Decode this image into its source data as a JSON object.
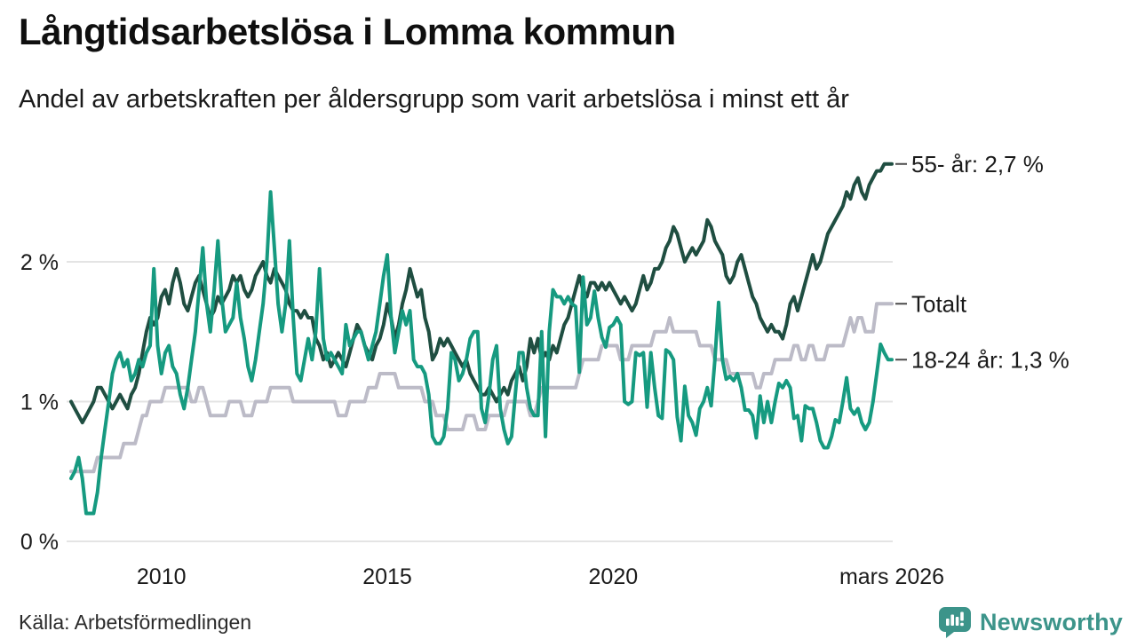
{
  "header": {
    "title": "Långtidsarbetslösa i Lomma kommun",
    "subtitle": "Andel av arbetskraften per åldersgrupp som varit arbetslösa i minst ett år"
  },
  "footer": {
    "source": "Källa: Arbetsförmedlingen",
    "brand": "Newsworthy"
  },
  "colors": {
    "series_55": "#1f4e41",
    "series_total": "#bcbbc7",
    "series_1824": "#169a80",
    "gridline": "#e4e4e4",
    "axis_text": "#1a1a1a",
    "end_label_text": "#1a1a1a",
    "end_label_dash": "#4a4a4a",
    "brand_teal": "#3c948a"
  },
  "chart_data": {
    "type": "line",
    "title": "Långtidsarbetslösa i Lomma kommun",
    "subtitle": "Andel av arbetskraften per åldersgrupp som varit arbetslösa i minst ett år",
    "x_start": "2008-01",
    "x_end": "2026-03",
    "x_unit": "month",
    "ylim": [
      0,
      2.9
    ],
    "grid": true,
    "y_ticks": [
      {
        "label": "0 %",
        "value": 0
      },
      {
        "label": "1 %",
        "value": 1
      },
      {
        "label": "2 %",
        "value": 2
      }
    ],
    "x_ticks": [
      {
        "label": "2010",
        "month": 24
      },
      {
        "label": "2015",
        "month": 84
      },
      {
        "label": "2020",
        "month": 144
      },
      {
        "label": "mars 2026",
        "month": 218
      }
    ],
    "series": [
      {
        "name": "Totalt",
        "end_label": "Totalt",
        "color": "#bcbbc7",
        "values": [
          0.5,
          0.5,
          0.5,
          0.5,
          0.5,
          0.5,
          0.5,
          0.6,
          0.6,
          0.6,
          0.6,
          0.6,
          0.6,
          0.6,
          0.7,
          0.7,
          0.7,
          0.7,
          0.8,
          0.9,
          0.9,
          1.0,
          1.0,
          1.0,
          1.0,
          1.1,
          1.1,
          1.1,
          1.1,
          1.1,
          1.1,
          1.1,
          1.0,
          1.0,
          1.1,
          1.1,
          1.0,
          0.9,
          0.9,
          0.9,
          0.9,
          0.9,
          1.0,
          1.0,
          1.0,
          1.0,
          0.9,
          0.9,
          0.9,
          1.0,
          1.0,
          1.0,
          1.0,
          1.1,
          1.1,
          1.1,
          1.1,
          1.1,
          1.1,
          1.0,
          1.0,
          1.0,
          1.0,
          1.0,
          1.0,
          1.0,
          1.0,
          1.0,
          1.0,
          1.0,
          1.0,
          0.9,
          0.9,
          0.9,
          1.0,
          1.0,
          1.0,
          1.0,
          1.0,
          1.1,
          1.1,
          1.1,
          1.2,
          1.2,
          1.2,
          1.2,
          1.2,
          1.1,
          1.1,
          1.1,
          1.1,
          1.1,
          1.1,
          1.1,
          1.0,
          1.0,
          1.0,
          0.9,
          0.9,
          0.9,
          0.8,
          0.8,
          0.8,
          0.8,
          0.8,
          0.9,
          0.9,
          0.9,
          0.8,
          0.8,
          0.8,
          0.9,
          0.9,
          0.9,
          0.9,
          0.9,
          1.0,
          1.0,
          1.0,
          1.0,
          1.0,
          1.0,
          0.9,
          0.9,
          1.0,
          1.1,
          1.1,
          1.1,
          1.1,
          1.1,
          1.1,
          1.1,
          1.1,
          1.1,
          1.1,
          1.2,
          1.3,
          1.3,
          1.3,
          1.3,
          1.3,
          1.4,
          1.4,
          1.4,
          1.4,
          1.4,
          1.3,
          1.3,
          1.3,
          1.4,
          1.4,
          1.4,
          1.4,
          1.4,
          1.4,
          1.5,
          1.5,
          1.5,
          1.5,
          1.6,
          1.5,
          1.5,
          1.5,
          1.5,
          1.5,
          1.5,
          1.5,
          1.4,
          1.4,
          1.4,
          1.4,
          1.3,
          1.3,
          1.3,
          1.3,
          1.2,
          1.2,
          1.2,
          1.2,
          1.2,
          1.2,
          1.2,
          1.1,
          1.1,
          1.2,
          1.2,
          1.2,
          1.3,
          1.3,
          1.3,
          1.3,
          1.3,
          1.4,
          1.4,
          1.3,
          1.3,
          1.4,
          1.4,
          1.3,
          1.3,
          1.3,
          1.4,
          1.4,
          1.4,
          1.4,
          1.4,
          1.5,
          1.6,
          1.5,
          1.6,
          1.6,
          1.5,
          1.5,
          1.5,
          1.7,
          1.7,
          1.7,
          1.7,
          1.7
        ]
      },
      {
        "name": "55- år",
        "end_label": "55- år: 2,7 %",
        "color": "#1f4e41",
        "values": [
          1.0,
          0.95,
          0.9,
          0.85,
          0.9,
          0.95,
          1.0,
          1.1,
          1.1,
          1.05,
          1.0,
          0.95,
          1.0,
          1.05,
          1.0,
          0.95,
          1.05,
          1.1,
          1.2,
          1.35,
          1.5,
          1.6,
          1.55,
          1.6,
          1.75,
          1.8,
          1.7,
          1.85,
          1.95,
          1.85,
          1.7,
          1.65,
          1.75,
          1.85,
          1.9,
          1.8,
          1.7,
          1.6,
          1.65,
          1.75,
          1.7,
          1.75,
          1.8,
          1.9,
          1.85,
          1.9,
          1.8,
          1.75,
          1.8,
          1.9,
          1.95,
          2.0,
          1.9,
          1.85,
          1.95,
          1.9,
          1.85,
          1.8,
          1.7,
          1.65,
          1.65,
          1.6,
          1.65,
          1.6,
          1.6,
          1.45,
          1.4,
          1.3,
          1.35,
          1.25,
          1.3,
          1.35,
          1.3,
          1.25,
          1.35,
          1.45,
          1.55,
          1.5,
          1.4,
          1.35,
          1.3,
          1.4,
          1.45,
          1.55,
          1.7,
          1.6,
          1.45,
          1.55,
          1.7,
          1.8,
          1.95,
          1.85,
          1.75,
          1.8,
          1.6,
          1.5,
          1.3,
          1.35,
          1.45,
          1.4,
          1.45,
          1.4,
          1.35,
          1.3,
          1.25,
          1.3,
          1.2,
          1.15,
          1.1,
          1.05,
          1.05,
          1.1,
          1.05,
          1.0,
          1.05,
          1.1,
          1.05,
          1.15,
          1.2,
          1.25,
          1.15,
          1.25,
          1.45,
          1.35,
          1.45,
          1.3,
          1.35,
          1.3,
          1.4,
          1.35,
          1.45,
          1.55,
          1.6,
          1.7,
          1.8,
          1.9,
          1.8,
          1.75,
          1.85,
          1.85,
          1.8,
          1.85,
          1.8,
          1.85,
          1.8,
          1.75,
          1.7,
          1.75,
          1.7,
          1.65,
          1.7,
          1.8,
          1.9,
          1.8,
          1.85,
          1.95,
          1.95,
          2.0,
          2.1,
          2.15,
          2.25,
          2.2,
          2.1,
          2.0,
          2.05,
          2.1,
          2.05,
          2.1,
          2.15,
          2.3,
          2.25,
          2.15,
          2.1,
          2.05,
          1.9,
          1.85,
          1.9,
          2.0,
          2.05,
          1.95,
          1.85,
          1.75,
          1.7,
          1.6,
          1.55,
          1.5,
          1.55,
          1.5,
          1.5,
          1.45,
          1.55,
          1.7,
          1.75,
          1.65,
          1.75,
          1.85,
          1.95,
          2.05,
          1.95,
          2.0,
          2.1,
          2.2,
          2.25,
          2.3,
          2.35,
          2.4,
          2.5,
          2.45,
          2.55,
          2.6,
          2.5,
          2.45,
          2.55,
          2.6,
          2.65,
          2.65,
          2.7,
          2.7,
          2.7
        ]
      },
      {
        "name": "18-24 år",
        "end_label": "18-24 år: 1,3 %",
        "color": "#169a80",
        "values": [
          0.45,
          0.5,
          0.6,
          0.45,
          0.2,
          0.2,
          0.2,
          0.35,
          0.6,
          0.8,
          1.0,
          1.2,
          1.3,
          1.35,
          1.25,
          1.3,
          1.15,
          1.2,
          1.3,
          1.25,
          1.35,
          1.4,
          1.95,
          1.4,
          1.2,
          1.35,
          1.4,
          1.25,
          1.2,
          1.05,
          0.95,
          1.1,
          1.3,
          1.5,
          1.8,
          2.1,
          1.7,
          1.5,
          1.8,
          2.15,
          1.75,
          1.5,
          1.55,
          1.6,
          1.85,
          1.6,
          1.45,
          1.25,
          1.15,
          1.3,
          1.5,
          1.7,
          2.0,
          2.5,
          2.1,
          1.7,
          1.5,
          1.7,
          2.15,
          1.6,
          1.2,
          1.15,
          1.3,
          1.45,
          1.3,
          1.5,
          1.95,
          1.45,
          1.3,
          1.35,
          1.3,
          1.25,
          1.2,
          1.55,
          1.4,
          1.45,
          1.5,
          1.5,
          1.4,
          1.3,
          1.4,
          1.5,
          1.7,
          1.9,
          2.05,
          1.6,
          1.35,
          1.5,
          1.65,
          1.55,
          1.65,
          1.3,
          1.25,
          1.25,
          1.2,
          1.05,
          0.75,
          0.7,
          0.7,
          0.75,
          0.95,
          1.35,
          1.3,
          1.15,
          1.2,
          1.3,
          1.45,
          1.5,
          1.5,
          0.95,
          0.85,
          1.05,
          1.3,
          1.4,
          0.95,
          0.8,
          0.7,
          0.75,
          1.05,
          1.35,
          1.35,
          1.1,
          0.95,
          0.9,
          0.9,
          1.5,
          0.75,
          1.5,
          1.8,
          1.75,
          1.75,
          1.7,
          1.75,
          1.7,
          1.68,
          1.21,
          1.89,
          1.55,
          1.6,
          1.79,
          1.6,
          1.46,
          1.39,
          1.53,
          1.55,
          1.6,
          1.55,
          1.0,
          0.98,
          1.0,
          1.35,
          1.33,
          1.35,
          0.96,
          1.35,
          1.1,
          0.9,
          0.88,
          1.37,
          1.35,
          1.3,
          0.89,
          0.72,
          1.11,
          0.9,
          0.85,
          0.76,
          0.95,
          1.0,
          1.1,
          0.97,
          1.3,
          1.71,
          1.3,
          1.16,
          1.18,
          1.15,
          1.2,
          1.1,
          0.94,
          0.94,
          0.9,
          0.74,
          1.04,
          0.85,
          1.0,
          0.85,
          1.0,
          1.13,
          1.1,
          1.15,
          1.1,
          0.88,
          0.9,
          0.72,
          0.97,
          0.95,
          0.95,
          0.85,
          0.72,
          0.67,
          0.67,
          0.75,
          0.87,
          0.85,
          1.0,
          1.17,
          0.95,
          0.91,
          0.95,
          0.85,
          0.8,
          0.85,
          1.0,
          1.2,
          1.41,
          1.35,
          1.3,
          1.3
        ]
      }
    ]
  }
}
